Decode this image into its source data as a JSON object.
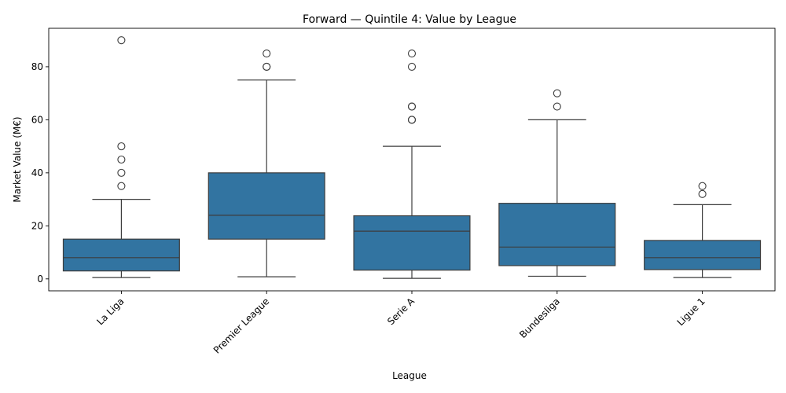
{
  "chart_data": {
    "type": "box",
    "title": "Forward — Quintile 4: Value by League",
    "xlabel": "League",
    "ylabel": "Market Value (M€)",
    "ylim": [
      -4.5,
      94.5
    ],
    "yticks": [
      0,
      20,
      40,
      60,
      80
    ],
    "grid": false,
    "box_color": "#3274a1",
    "categories": [
      "La Liga",
      "Premier League",
      "Serie A",
      "Bundesliga",
      "Ligue 1"
    ],
    "boxes": [
      {
        "category": "La Liga",
        "whisker_low": 0.5,
        "q1": 3,
        "median": 8,
        "q3": 15,
        "whisker_high": 30,
        "outliers": [
          35,
          40,
          45,
          50,
          90
        ]
      },
      {
        "category": "Premier League",
        "whisker_low": 0.8,
        "q1": 15,
        "median": 24,
        "q3": 40,
        "whisker_high": 75,
        "outliers": [
          80,
          80,
          85
        ]
      },
      {
        "category": "Serie A",
        "whisker_low": 0.2,
        "q1": 3.3,
        "median": 18,
        "q3": 23.8,
        "whisker_high": 50,
        "outliers": [
          60,
          60,
          65,
          65,
          80,
          85
        ]
      },
      {
        "category": "Bundesliga",
        "whisker_low": 1,
        "q1": 5,
        "median": 12,
        "q3": 28.5,
        "whisker_high": 60,
        "outliers": [
          65,
          70
        ]
      },
      {
        "category": "Ligue 1",
        "whisker_low": 0.5,
        "q1": 3.5,
        "median": 8,
        "q3": 14.5,
        "whisker_high": 28,
        "outliers": [
          32,
          35
        ]
      }
    ]
  }
}
